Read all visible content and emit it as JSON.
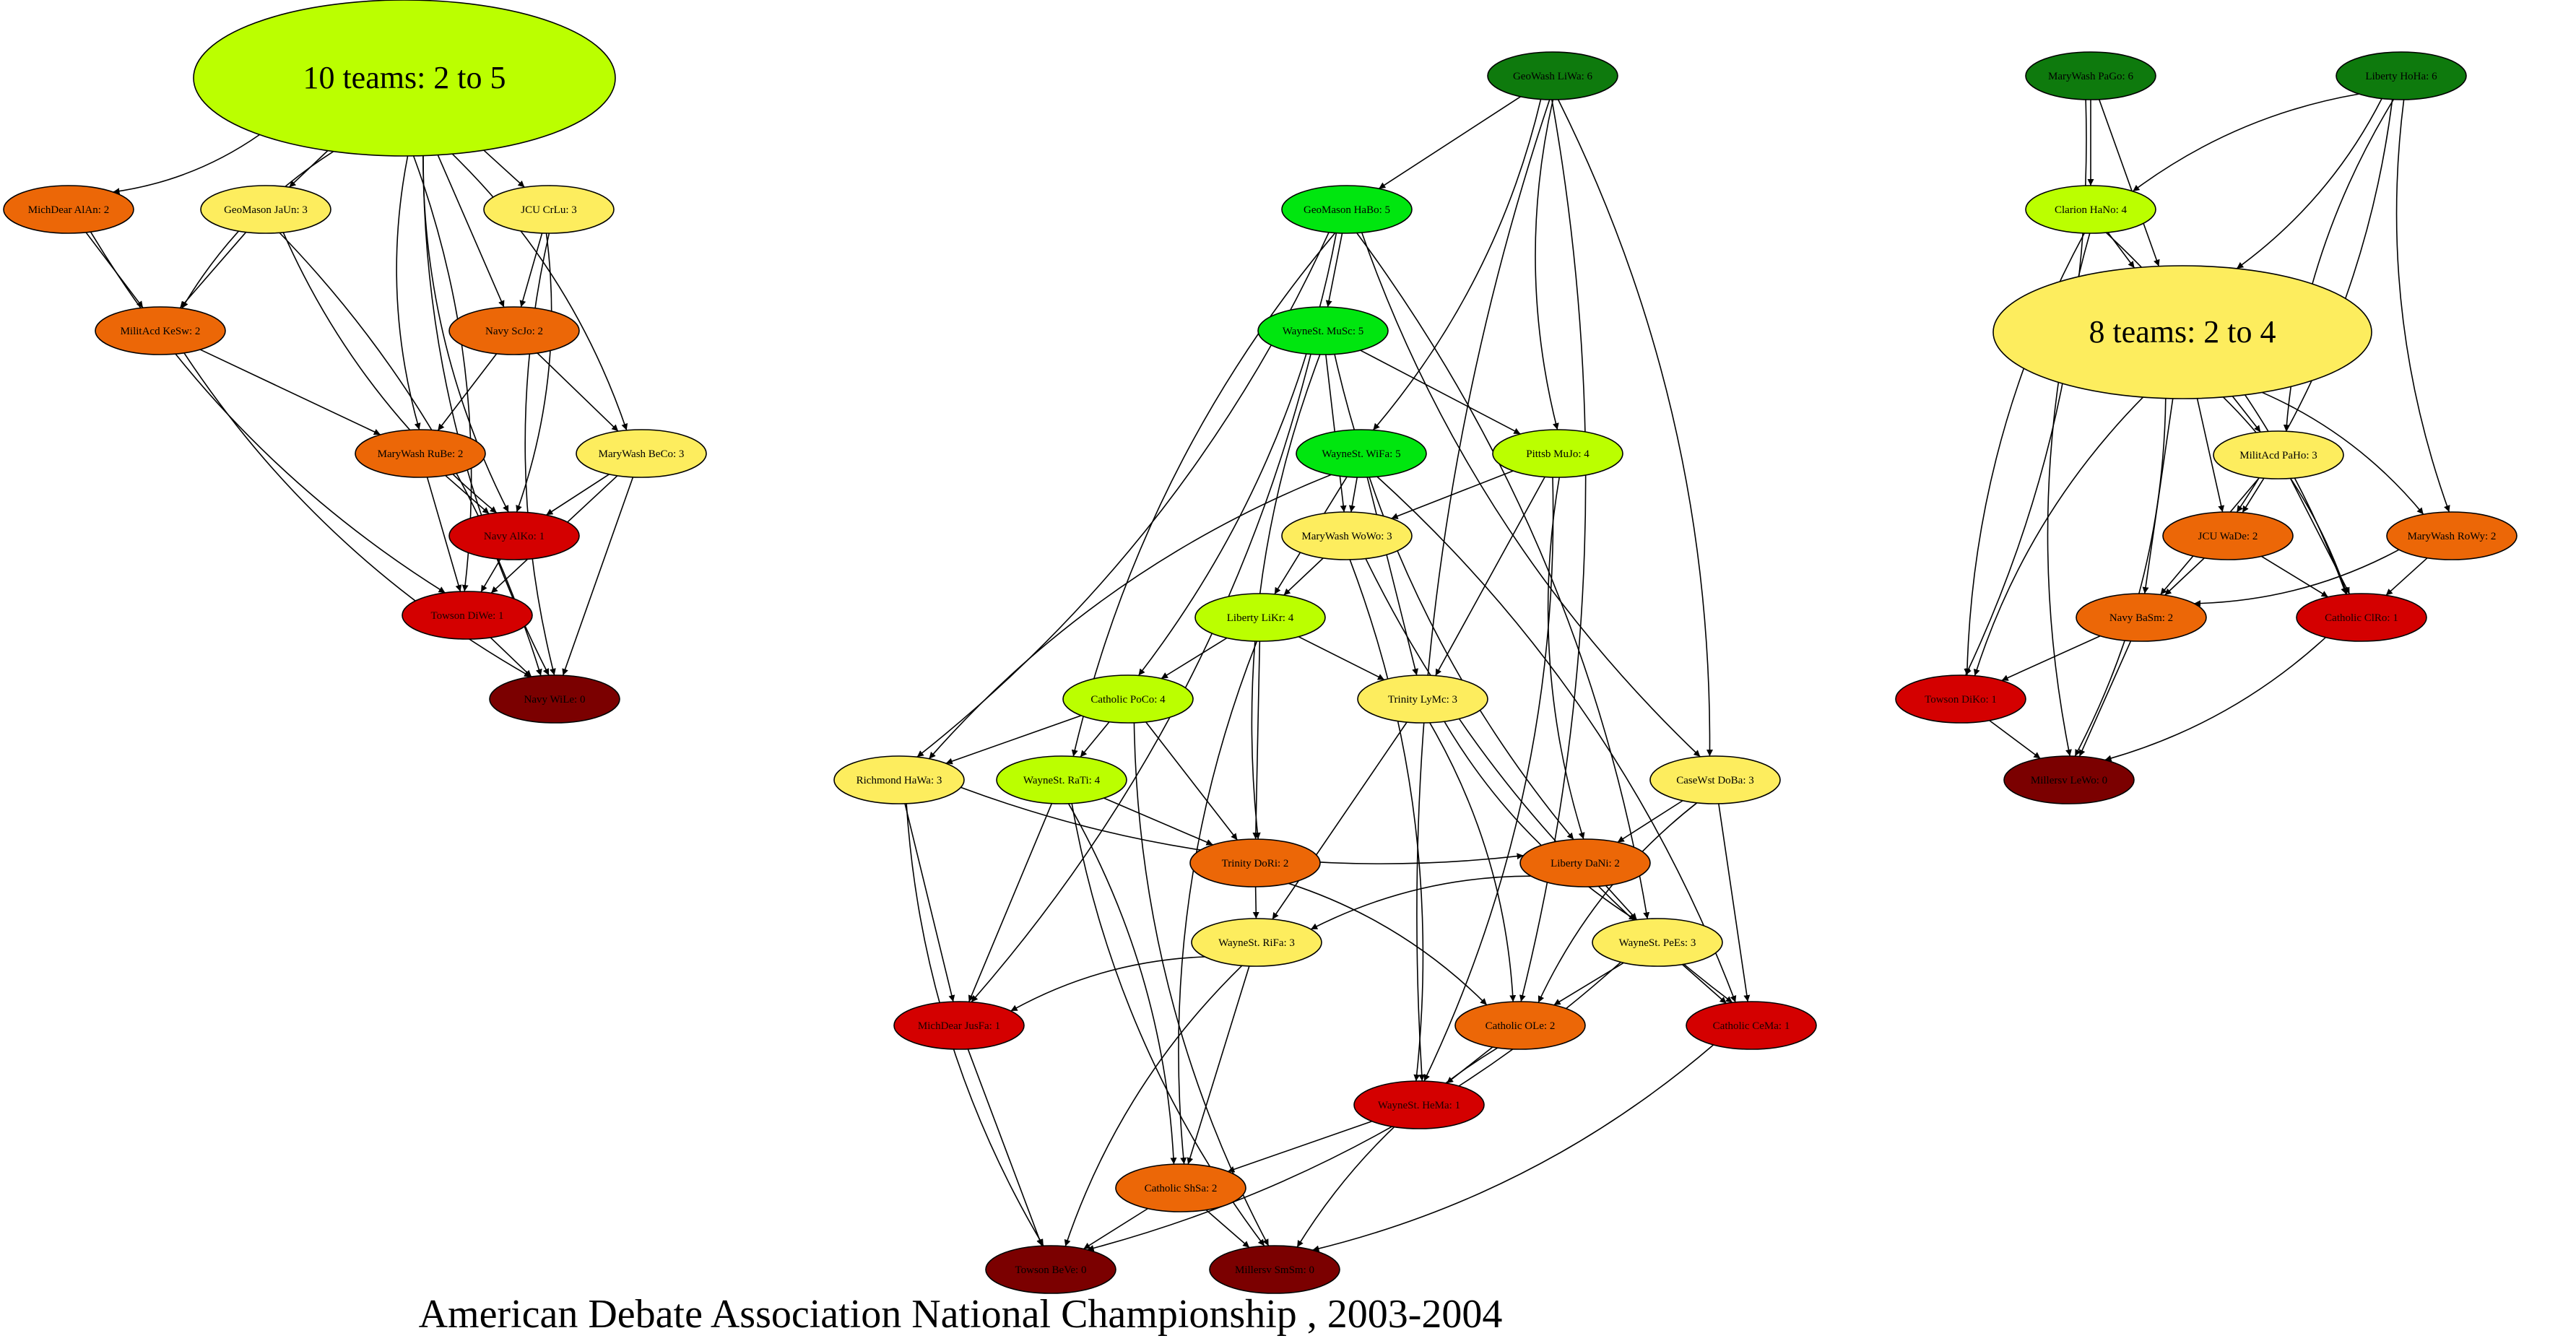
{
  "title": "American Debate Association National Championship , 2003-2004",
  "colors": {
    "dark_green": "#0e7a0d",
    "green": "#00e60f",
    "lime": "#bbff00",
    "yellow": "#fded5e",
    "orange": "#ec6707",
    "red": "#d40000",
    "dark_red": "#7b0000"
  },
  "nodes": [
    {
      "id": "c10",
      "label": "10 teams: 2 to 5",
      "color": "lime",
      "cluster": true
    },
    {
      "id": "MichDear_AlAn",
      "label": "MichDear AlAn: 2",
      "color": "orange"
    },
    {
      "id": "GeoMason_JaUn",
      "label": "GeoMason JaUn: 3",
      "color": "yellow"
    },
    {
      "id": "JCU_CrLu",
      "label": "JCU CrLu: 3",
      "color": "yellow"
    },
    {
      "id": "MilitAcd_KeSw",
      "label": "MilitAcd KeSw: 2",
      "color": "orange"
    },
    {
      "id": "Navy_ScJo",
      "label": "Navy ScJo: 2",
      "color": "orange"
    },
    {
      "id": "MaryWash_RuBe",
      "label": "MaryWash RuBe: 2",
      "color": "orange"
    },
    {
      "id": "MaryWash_BeCo",
      "label": "MaryWash BeCo: 3",
      "color": "yellow"
    },
    {
      "id": "Navy_AlKo",
      "label": "Navy AlKo: 1",
      "color": "red"
    },
    {
      "id": "Towson_DiWe",
      "label": "Towson DiWe: 1",
      "color": "red"
    },
    {
      "id": "Navy_WiLe",
      "label": "Navy WiLe: 0",
      "color": "dark_red"
    },
    {
      "id": "GeoWash_LiWa",
      "label": "GeoWash LiWa: 6",
      "color": "dark_green"
    },
    {
      "id": "GeoMason_HaBo",
      "label": "GeoMason HaBo: 5",
      "color": "green"
    },
    {
      "id": "WayneSt_MuSc",
      "label": "WayneSt. MuSc: 5",
      "color": "green"
    },
    {
      "id": "WayneSt_WiFa",
      "label": "WayneSt. WiFa: 5",
      "color": "green"
    },
    {
      "id": "Pittsb_MuJo",
      "label": "Pittsb MuJo: 4",
      "color": "lime"
    },
    {
      "id": "MaryWash_WoWo",
      "label": "MaryWash WoWo: 3",
      "color": "yellow"
    },
    {
      "id": "Liberty_LiKr",
      "label": "Liberty LiKr: 4",
      "color": "lime"
    },
    {
      "id": "Catholic_PoCo",
      "label": "Catholic PoCo: 4",
      "color": "lime"
    },
    {
      "id": "Trinity_LyMc",
      "label": "Trinity LyMc: 3",
      "color": "yellow"
    },
    {
      "id": "Richmond_HaWa",
      "label": "Richmond HaWa: 3",
      "color": "yellow"
    },
    {
      "id": "WayneSt_RaTi",
      "label": "WayneSt. RaTi: 4",
      "color": "lime"
    },
    {
      "id": "CaseWst_DoBa",
      "label": "CaseWst DoBa: 3",
      "color": "yellow"
    },
    {
      "id": "Trinity_DoRi",
      "label": "Trinity DoRi: 2",
      "color": "orange"
    },
    {
      "id": "Liberty_DaNi",
      "label": "Liberty DaNi: 2",
      "color": "orange"
    },
    {
      "id": "WayneSt_RiFa",
      "label": "WayneSt. RiFa: 3",
      "color": "yellow"
    },
    {
      "id": "WayneSt_PeEs",
      "label": "WayneSt. PeEs: 3",
      "color": "yellow"
    },
    {
      "id": "MichDear_JusFa",
      "label": "MichDear JusFa: 1",
      "color": "red"
    },
    {
      "id": "Catholic_OLe",
      "label": "Catholic OLe: 2",
      "color": "orange"
    },
    {
      "id": "Catholic_CeMa",
      "label": "Catholic CeMa: 1",
      "color": "red"
    },
    {
      "id": "WayneSt_HeMa",
      "label": "WayneSt. HeMa: 1",
      "color": "red"
    },
    {
      "id": "Catholic_ShSa",
      "label": "Catholic ShSa: 2",
      "color": "orange"
    },
    {
      "id": "Towson_BeVe",
      "label": "Towson BeVe: 0",
      "color": "dark_red"
    },
    {
      "id": "Millersv_SmSm",
      "label": "Millersv SmSm: 0",
      "color": "dark_red"
    },
    {
      "id": "MaryWash_PaGo",
      "label": "MaryWash PaGo: 6",
      "color": "dark_green"
    },
    {
      "id": "Liberty_HoHa",
      "label": "Liberty HoHa: 6",
      "color": "dark_green"
    },
    {
      "id": "Clarion_HaNo",
      "label": "Clarion HaNo: 4",
      "color": "lime"
    },
    {
      "id": "c8",
      "label": "8 teams: 2 to 4",
      "color": "yellow",
      "cluster": true
    },
    {
      "id": "MilitAcd_PaHo",
      "label": "MilitAcd PaHo: 3",
      "color": "yellow"
    },
    {
      "id": "JCU_WaDe",
      "label": "JCU WaDe: 2",
      "color": "orange"
    },
    {
      "id": "MaryWash_RoWy",
      "label": "MaryWash RoWy: 2",
      "color": "orange"
    },
    {
      "id": "Navy_BaSm",
      "label": "Navy BaSm: 2",
      "color": "orange"
    },
    {
      "id": "Catholic_ClRo",
      "label": "Catholic ClRo: 1",
      "color": "red"
    },
    {
      "id": "Towson_DiKo",
      "label": "Towson DiKo: 1",
      "color": "red"
    },
    {
      "id": "Millersv_LeWo",
      "label": "Millersv LeWo: 0",
      "color": "dark_red"
    }
  ],
  "edges": [
    [
      "c10",
      "MichDear_AlAn"
    ],
    [
      "c10",
      "GeoMason_JaUn"
    ],
    [
      "c10",
      "JCU_CrLu"
    ],
    [
      "c10",
      "MilitAcd_KeSw"
    ],
    [
      "c10",
      "Navy_ScJo"
    ],
    [
      "c10",
      "MaryWash_RuBe"
    ],
    [
      "c10",
      "MaryWash_BeCo"
    ],
    [
      "c10",
      "Navy_AlKo"
    ],
    [
      "c10",
      "Towson_DiWe"
    ],
    [
      "c10",
      "Navy_WiLe"
    ],
    [
      "MichDear_AlAn",
      "MilitAcd_KeSw"
    ],
    [
      "MichDear_AlAn",
      "Towson_DiWe"
    ],
    [
      "GeoMason_JaUn",
      "MilitAcd_KeSw"
    ],
    [
      "GeoMason_JaUn",
      "Navy_AlKo"
    ],
    [
      "GeoMason_JaUn",
      "Navy_WiLe"
    ],
    [
      "JCU_CrLu",
      "Navy_ScJo"
    ],
    [
      "JCU_CrLu",
      "Navy_AlKo"
    ],
    [
      "JCU_CrLu",
      "Navy_WiLe"
    ],
    [
      "MilitAcd_KeSw",
      "MaryWash_RuBe"
    ],
    [
      "MilitAcd_KeSw",
      "Navy_WiLe"
    ],
    [
      "Navy_ScJo",
      "MaryWash_RuBe"
    ],
    [
      "Navy_ScJo",
      "MaryWash_BeCo"
    ],
    [
      "MaryWash_RuBe",
      "Navy_AlKo"
    ],
    [
      "MaryWash_RuBe",
      "Towson_DiWe"
    ],
    [
      "MaryWash_BeCo",
      "Navy_AlKo"
    ],
    [
      "MaryWash_BeCo",
      "Towson_DiWe"
    ],
    [
      "MaryWash_BeCo",
      "Navy_WiLe"
    ],
    [
      "Navy_AlKo",
      "Towson_DiWe"
    ],
    [
      "Towson_DiWe",
      "Navy_WiLe"
    ],
    [
      "GeoWash_LiWa",
      "GeoMason_HaBo"
    ],
    [
      "GeoWash_LiWa",
      "WayneSt_WiFa"
    ],
    [
      "GeoWash_LiWa",
      "Pittsb_MuJo"
    ],
    [
      "GeoWash_LiWa",
      "CaseWst_DoBa"
    ],
    [
      "GeoWash_LiWa",
      "WayneSt_HeMa"
    ],
    [
      "GeoWash_LiWa",
      "Catholic_OLe"
    ],
    [
      "GeoMason_HaBo",
      "WayneSt_MuSc"
    ],
    [
      "GeoMason_HaBo",
      "Richmond_HaWa"
    ],
    [
      "GeoMason_HaBo",
      "WayneSt_RaTi"
    ],
    [
      "GeoMason_HaBo",
      "Catholic_PoCo"
    ],
    [
      "GeoMason_HaBo",
      "CaseWst_DoBa"
    ],
    [
      "GeoMason_HaBo",
      "WayneSt_PeEs"
    ],
    [
      "WayneSt_MuSc",
      "Pittsb_MuJo"
    ],
    [
      "WayneSt_MuSc",
      "MaryWash_WoWo"
    ],
    [
      "WayneSt_MuSc",
      "Liberty_DaNi"
    ],
    [
      "WayneSt_MuSc",
      "MichDear_JusFa"
    ],
    [
      "WayneSt_MuSc",
      "Trinity_DoRi"
    ],
    [
      "WayneSt_WiFa",
      "MaryWash_WoWo"
    ],
    [
      "WayneSt_WiFa",
      "Liberty_LiKr"
    ],
    [
      "WayneSt_WiFa",
      "Trinity_LyMc"
    ],
    [
      "WayneSt_WiFa",
      "Richmond_HaWa"
    ],
    [
      "WayneSt_WiFa",
      "Catholic_CeMa"
    ],
    [
      "Pittsb_MuJo",
      "MaryWash_WoWo"
    ],
    [
      "Pittsb_MuJo",
      "Trinity_LyMc"
    ],
    [
      "Pittsb_MuJo",
      "Liberty_DaNi"
    ],
    [
      "Pittsb_MuJo",
      "WayneSt_HeMa"
    ],
    [
      "MaryWash_WoWo",
      "Liberty_LiKr"
    ],
    [
      "MaryWash_WoWo",
      "WayneSt_HeMa"
    ],
    [
      "MaryWash_WoWo",
      "Catholic_CeMa"
    ],
    [
      "Liberty_LiKr",
      "Catholic_PoCo"
    ],
    [
      "Liberty_LiKr",
      "Trinity_LyMc"
    ],
    [
      "Liberty_LiKr",
      "Trinity_DoRi"
    ],
    [
      "Liberty_LiKr",
      "Catholic_ShSa"
    ],
    [
      "Catholic_PoCo",
      "Richmond_HaWa"
    ],
    [
      "Catholic_PoCo",
      "WayneSt_RaTi"
    ],
    [
      "Catholic_PoCo",
      "Trinity_DoRi"
    ],
    [
      "Catholic_PoCo",
      "Millersv_SmSm"
    ],
    [
      "Trinity_LyMc",
      "WayneSt_RiFa"
    ],
    [
      "Trinity_LyMc",
      "WayneSt_PeEs"
    ],
    [
      "Trinity_LyMc",
      "Catholic_OLe"
    ],
    [
      "Richmond_HaWa",
      "Liberty_DaNi"
    ],
    [
      "Richmond_HaWa",
      "MichDear_JusFa"
    ],
    [
      "Richmond_HaWa",
      "Towson_BeVe"
    ],
    [
      "WayneSt_RaTi",
      "Trinity_DoRi"
    ],
    [
      "WayneSt_RaTi",
      "MichDear_JusFa"
    ],
    [
      "WayneSt_RaTi",
      "Catholic_ShSa"
    ],
    [
      "WayneSt_RaTi",
      "Millersv_SmSm"
    ],
    [
      "CaseWst_DoBa",
      "Liberty_DaNi"
    ],
    [
      "CaseWst_DoBa",
      "Catholic_OLe"
    ],
    [
      "CaseWst_DoBa",
      "Catholic_CeMa"
    ],
    [
      "Trinity_DoRi",
      "WayneSt_RiFa"
    ],
    [
      "Trinity_DoRi",
      "Catholic_OLe"
    ],
    [
      "Liberty_DaNi",
      "WayneSt_RiFa"
    ],
    [
      "Liberty_DaNi",
      "WayneSt_PeEs"
    ],
    [
      "WayneSt_RiFa",
      "MichDear_JusFa"
    ],
    [
      "WayneSt_RiFa",
      "Catholic_ShSa"
    ],
    [
      "WayneSt_RiFa",
      "Towson_BeVe"
    ],
    [
      "WayneSt_PeEs",
      "Catholic_OLe"
    ],
    [
      "WayneSt_PeEs",
      "Catholic_CeMa"
    ],
    [
      "WayneSt_PeEs",
      "Towson_BeVe"
    ],
    [
      "MichDear_JusFa",
      "Towson_BeVe"
    ],
    [
      "Catholic_OLe",
      "WayneSt_HeMa"
    ],
    [
      "Catholic_OLe",
      "Millersv_SmSm"
    ],
    [
      "Catholic_CeMa",
      "Millersv_SmSm"
    ],
    [
      "WayneSt_HeMa",
      "Catholic_ShSa"
    ],
    [
      "Catholic_ShSa",
      "Towson_BeVe"
    ],
    [
      "Catholic_ShSa",
      "Millersv_SmSm"
    ],
    [
      "MaryWash_PaGo",
      "Clarion_HaNo"
    ],
    [
      "MaryWash_PaGo",
      "c8"
    ],
    [
      "MaryWash_PaGo",
      "Towson_DiKo"
    ],
    [
      "Liberty_HoHa",
      "Clarion_HaNo"
    ],
    [
      "Liberty_HoHa",
      "c8"
    ],
    [
      "Liberty_HoHa",
      "MilitAcd_PaHo"
    ],
    [
      "Liberty_HoHa",
      "JCU_WaDe"
    ],
    [
      "Liberty_HoHa",
      "MaryWash_RoWy"
    ],
    [
      "Clarion_HaNo",
      "c8"
    ],
    [
      "Clarion_HaNo",
      "Towson_DiKo"
    ],
    [
      "Clarion_HaNo",
      "Catholic_ClRo"
    ],
    [
      "Clarion_HaNo",
      "Millersv_LeWo"
    ],
    [
      "c8",
      "MilitAcd_PaHo"
    ],
    [
      "c8",
      "JCU_WaDe"
    ],
    [
      "c8",
      "MaryWash_RoWy"
    ],
    [
      "c8",
      "Navy_BaSm"
    ],
    [
      "c8",
      "Catholic_ClRo"
    ],
    [
      "c8",
      "Towson_DiKo"
    ],
    [
      "c8",
      "Millersv_LeWo"
    ],
    [
      "MilitAcd_PaHo",
      "JCU_WaDe"
    ],
    [
      "MilitAcd_PaHo",
      "Navy_BaSm"
    ],
    [
      "MilitAcd_PaHo",
      "Catholic_ClRo"
    ],
    [
      "JCU_WaDe",
      "Navy_BaSm"
    ],
    [
      "JCU_WaDe",
      "Catholic_ClRo"
    ],
    [
      "MaryWash_RoWy",
      "Navy_BaSm"
    ],
    [
      "MaryWash_RoWy",
      "Catholic_ClRo"
    ],
    [
      "Navy_BaSm",
      "Towson_DiKo"
    ],
    [
      "Navy_BaSm",
      "Millersv_LeWo"
    ],
    [
      "Catholic_ClRo",
      "Millersv_LeWo"
    ],
    [
      "Towson_DiKo",
      "Millersv_LeWo"
    ]
  ]
}
